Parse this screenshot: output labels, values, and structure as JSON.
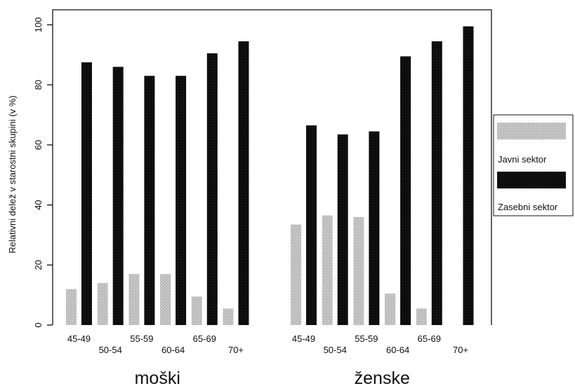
{
  "chart_data": {
    "type": "bar",
    "ylabel": "Relativni delež v starostni skupini (v %)",
    "ylim": [
      0,
      105
    ],
    "yticks": [
      0,
      20,
      40,
      60,
      80,
      100
    ],
    "grid": false,
    "legend_position": "right",
    "groups": [
      {
        "label": "moški",
        "categories": [
          "45-49",
          "50-54",
          "55-59",
          "60-64",
          "65-69",
          "70+"
        ],
        "series": [
          {
            "name": "Javni sektor",
            "values": [
              12,
              14,
              17,
              17,
              9.5,
              5.5
            ]
          },
          {
            "name": "Zasebni sektor",
            "values": [
              87.5,
              86,
              83,
              83,
              90.5,
              94.5
            ]
          }
        ]
      },
      {
        "label": "ženske",
        "categories": [
          "45-49",
          "50-54",
          "55-59",
          "60-64",
          "65-69",
          "70+"
        ],
        "series": [
          {
            "name": "Javni sektor",
            "values": [
              33.5,
              36.5,
              36,
              10.5,
              5.5,
              0
            ]
          },
          {
            "name": "Zasebni sektor",
            "values": [
              66.5,
              63.5,
              64.5,
              89.5,
              94.5,
              99.5
            ]
          }
        ]
      }
    ],
    "legend": [
      {
        "name": "Javni sektor",
        "color": "#b8b8b8"
      },
      {
        "name": "Zasebni sektor",
        "color": "#0a0a0a"
      }
    ]
  }
}
